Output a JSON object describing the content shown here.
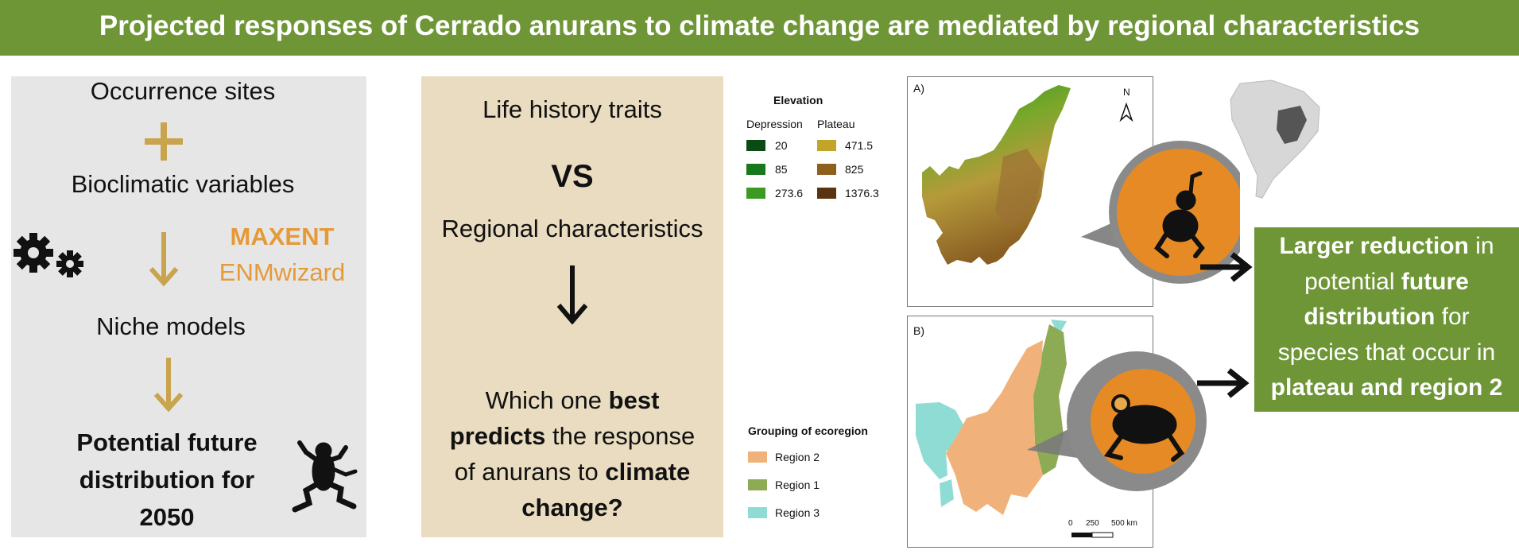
{
  "banner": {
    "title": "Projected responses of Cerrado anurans to climate change are mediated by regional characteristics"
  },
  "left_panel": {
    "occurrence": "Occurrence sites",
    "bioclim": "Bioclimatic variables",
    "maxent": "MAXENT",
    "enmwizard": "ENMwizard",
    "niche": "Niche models",
    "potential_line1": "Potential future",
    "potential_line2": "distribution for",
    "potential_line3": "2050"
  },
  "mid_panel": {
    "traits": "Life history traits",
    "vs": "VS",
    "regional": "Regional characteristics",
    "q_l1_a": "Which one ",
    "q_l1_b": "best",
    "q_l2_a": "predicts",
    "q_l2_b": " the response",
    "q_l3_a": "of anurans to ",
    "q_l3_b": "climate",
    "q_l4": "change?"
  },
  "elevation_legend": {
    "title": "Elevation",
    "depression_label": "Depression",
    "plateau_label": "Plateau",
    "depression": [
      {
        "value": "20",
        "color": "#0b4a12"
      },
      {
        "value": "85",
        "color": "#17781c"
      },
      {
        "value": "273.6",
        "color": "#3a9a22"
      }
    ],
    "plateau": [
      {
        "value": "471.5",
        "color": "#c2a528"
      },
      {
        "value": "825",
        "color": "#8f5f1e"
      },
      {
        "value": "1376.3",
        "color": "#5a3310"
      }
    ]
  },
  "ecoregion_legend": {
    "title": "Grouping of ecoregion",
    "items": [
      {
        "label": "Region 2",
        "color": "#f0b27a"
      },
      {
        "label": "Region 1",
        "color": "#8daa55"
      },
      {
        "label": "Region 3",
        "color": "#8fdcd4"
      }
    ]
  },
  "maps": {
    "a_label": "A)",
    "b_label": "B)",
    "north": "N",
    "scale_0": "0",
    "scale_250": "250",
    "scale_500": "500 km"
  },
  "result": {
    "l1_a": "Larger reduction",
    "l1_b": " in",
    "l2_a": "potential ",
    "l2_b": "future",
    "l3_a": "distribution",
    "l3_b": " for",
    "l4": "species that occur in",
    "l5": "plateau and region 2"
  },
  "colors": {
    "banner": "#6e9636",
    "orange": "#e59a3a",
    "arrow_tan": "#c9a44e",
    "panel_left": "#e6e6e6",
    "panel_mid": "#e9dcc0",
    "frog_circle": "#e68a25"
  }
}
